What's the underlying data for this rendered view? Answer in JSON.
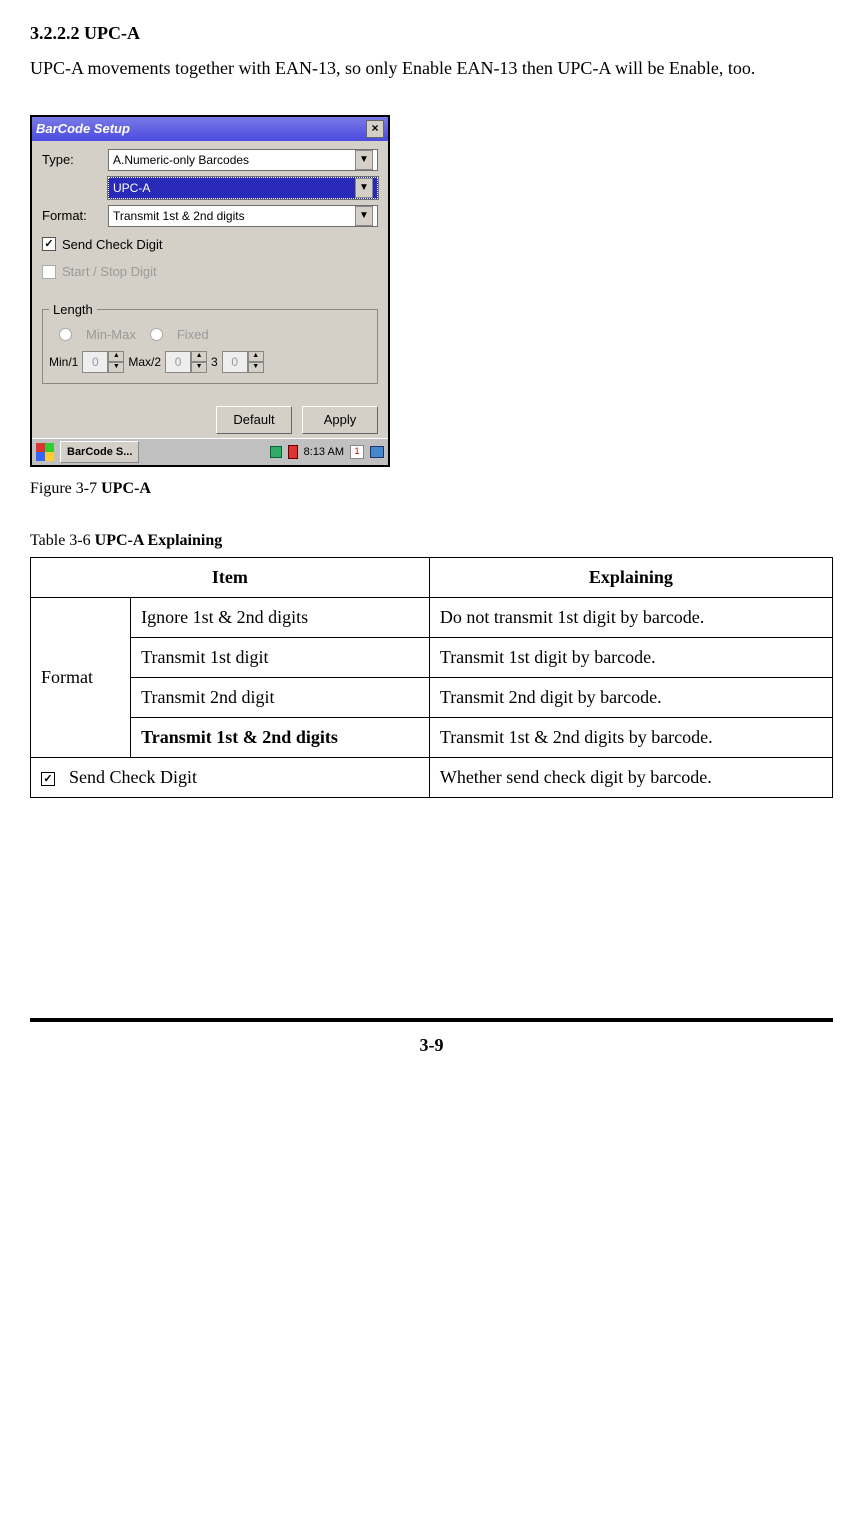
{
  "section": {
    "heading": "3.2.2.2 UPC-A",
    "body": "UPC-A movements together with EAN-13, so only Enable EAN-13 then UPC-A will be Enable, too."
  },
  "screenshot": {
    "title": "BarCode Setup",
    "labels": {
      "type": "Type:",
      "format": "Format:",
      "length": "Length"
    },
    "type_value": "A.Numeric-only Barcodes",
    "subtype_value": "UPC-A",
    "format_value": "Transmit 1st & 2nd digits",
    "send_check_digit": "Send Check Digit",
    "start_stop_digit": "Start / Stop Digit",
    "radio": {
      "minmax": "Min-Max",
      "fixed": "Fixed"
    },
    "spin": {
      "min_label": "Min/1",
      "max_label": "Max/2",
      "third_label": "3",
      "min_val": "0",
      "max_val": "0",
      "third_val": "0"
    },
    "buttons": {
      "default": "Default",
      "apply": "Apply"
    },
    "taskbar": {
      "app": "BarCode S...",
      "time": "8:13 AM"
    }
  },
  "figure_caption": {
    "prefix": "Figure 3-7 ",
    "bold": "UPC-A"
  },
  "table_caption": {
    "prefix": "Table 3-6 ",
    "bold": "UPC-A Explaining"
  },
  "table": {
    "head": {
      "item": "Item",
      "explain": "Explaining"
    },
    "group_label": "Format",
    "rows": [
      {
        "item": "Ignore 1st & 2nd digits",
        "explain": "Do not transmit 1st digit by barcode.",
        "bold": false
      },
      {
        "item": "Transmit 1st digit",
        "explain": "Transmit 1st digit by barcode.",
        "bold": false
      },
      {
        "item": "Transmit 2nd digit",
        "explain": "Transmit 2nd digit by barcode.",
        "bold": false
      },
      {
        "item": "Transmit 1st & 2nd digits",
        "explain": "Transmit 1st & 2nd digits by barcode.",
        "bold": true
      }
    ],
    "last_row": {
      "item": "Send Check Digit",
      "explain": "Whether send check digit by barcode."
    }
  },
  "page_number": "3-9"
}
